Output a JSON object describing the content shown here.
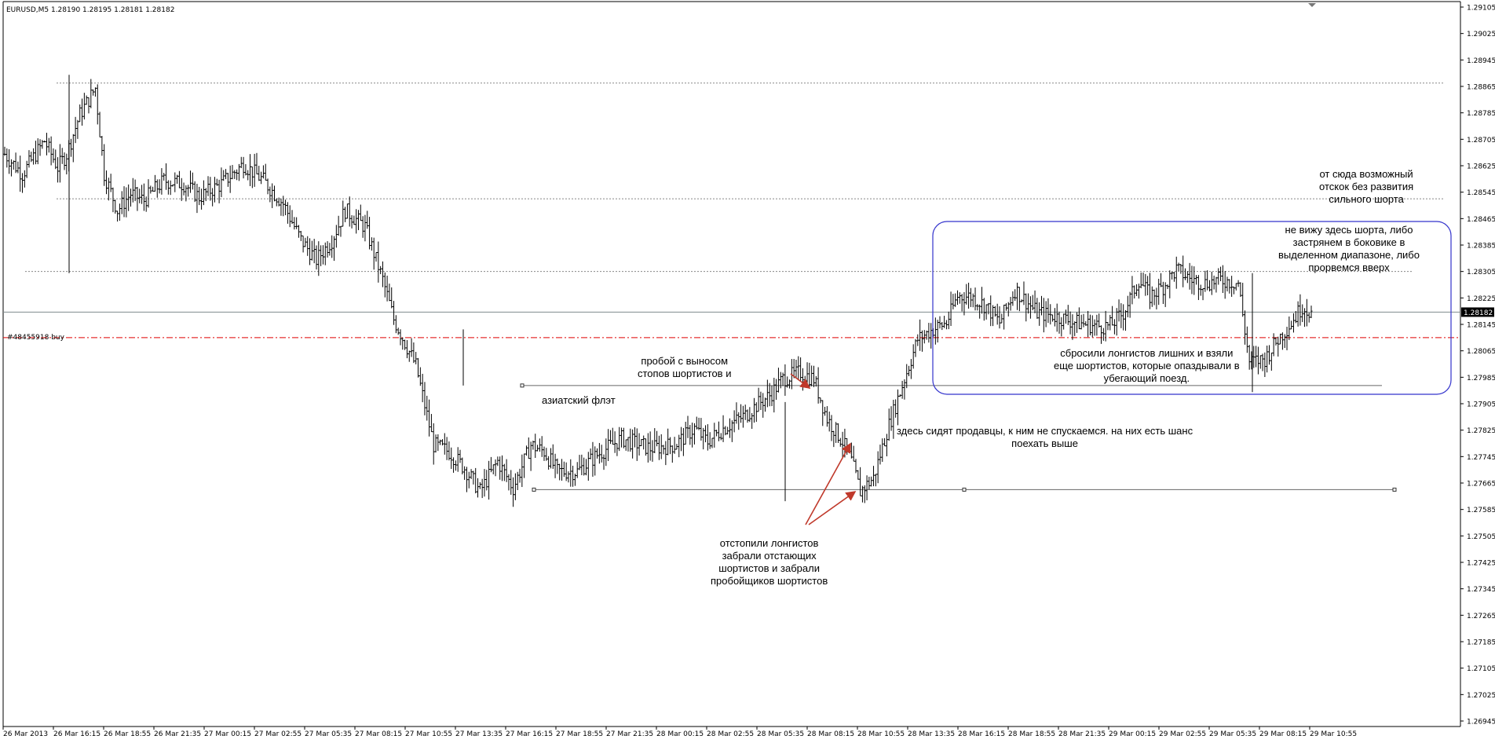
{
  "chart_data": {
    "type": "candlestick",
    "title": "EURUSD,M5  1.28190 1.28195 1.28181 1.28182",
    "symbol": "EURUSD",
    "timeframe": "M5",
    "last_bar": {
      "open": 1.2819,
      "high": 1.28195,
      "low": 1.28181,
      "close": 1.28182
    },
    "current_price_label": "1.28182",
    "ylim": [
      1.26945,
      1.29105
    ],
    "y_ticks": [
      "1.29105",
      "1.29025",
      "1.28945",
      "1.28865",
      "1.28785",
      "1.28705",
      "1.28625",
      "1.28545",
      "1.28465",
      "1.28385",
      "1.28305",
      "1.28225",
      "1.28145",
      "1.28065",
      "1.27985",
      "1.27905",
      "1.27825",
      "1.27745",
      "1.27665",
      "1.27585",
      "1.27505",
      "1.27425",
      "1.27345",
      "1.27265",
      "1.27185",
      "1.27105",
      "1.27025",
      "1.26945"
    ],
    "x_ticks": [
      "26 Mar 2013",
      "26 Mar 16:15",
      "26 Mar 18:55",
      "26 Mar 21:35",
      "27 Mar 00:15",
      "27 Mar 02:55",
      "27 Mar 05:35",
      "27 Mar 08:15",
      "27 Mar 10:55",
      "27 Mar 13:35",
      "27 Mar 16:15",
      "27 Mar 18:55",
      "27 Mar 21:35",
      "28 Mar 00:15",
      "28 Mar 02:55",
      "28 Mar 05:35",
      "28 Mar 08:15",
      "28 Mar 10:55",
      "28 Mar 13:35",
      "28 Mar 16:15",
      "28 Mar 18:55",
      "28 Mar 21:35",
      "29 Mar 00:15",
      "29 Mar 02:55",
      "29 Mar 05:35",
      "29 Mar 08:15",
      "29 Mar 10:55"
    ],
    "price_path": [
      [
        0,
        1.2866
      ],
      [
        8,
        1.286
      ],
      [
        18,
        1.287
      ],
      [
        24,
        1.2862
      ],
      [
        28,
        1.2866
      ],
      [
        34,
        1.2878
      ],
      [
        41,
        1.2886
      ],
      [
        45,
        1.286
      ],
      [
        51,
        1.2849
      ],
      [
        57,
        1.2854
      ],
      [
        63,
        1.2852
      ],
      [
        72,
        1.2858
      ],
      [
        81,
        1.2857
      ],
      [
        88,
        1.2853
      ],
      [
        98,
        1.2857
      ],
      [
        108,
        1.2863
      ],
      [
        117,
        1.2858
      ],
      [
        126,
        1.2851
      ],
      [
        134,
        1.284
      ],
      [
        141,
        1.2834
      ],
      [
        148,
        1.284
      ],
      [
        154,
        1.2849
      ],
      [
        163,
        1.2844
      ],
      [
        171,
        1.2828
      ],
      [
        176,
        1.2816
      ],
      [
        186,
        1.2802
      ],
      [
        194,
        1.2778
      ],
      [
        201,
        1.2776
      ],
      [
        208,
        1.2771
      ],
      [
        215,
        1.2764
      ],
      [
        223,
        1.2773
      ],
      [
        230,
        1.2765
      ],
      [
        238,
        1.2778
      ],
      [
        244,
        1.2776
      ],
      [
        250,
        1.277
      ],
      [
        259,
        1.277
      ],
      [
        268,
        1.2775
      ],
      [
        279,
        1.278
      ],
      [
        292,
        1.2777
      ],
      [
        303,
        1.2778
      ],
      [
        312,
        1.2783
      ],
      [
        318,
        1.2779
      ],
      [
        325,
        1.2783
      ],
      [
        335,
        1.2787
      ],
      [
        340,
        1.279
      ],
      [
        346,
        1.2793
      ],
      [
        352,
        1.2798
      ],
      [
        360,
        1.28
      ],
      [
        366,
        1.2798
      ],
      [
        372,
        1.2786
      ],
      [
        379,
        1.2779
      ],
      [
        383,
        1.2773
      ],
      [
        387,
        1.2764
      ],
      [
        393,
        1.2768
      ],
      [
        399,
        1.2782
      ],
      [
        407,
        1.2798
      ],
      [
        413,
        1.281
      ],
      [
        420,
        1.2813
      ],
      [
        426,
        1.2815
      ],
      [
        431,
        1.2823
      ],
      [
        437,
        1.2823
      ],
      [
        444,
        1.282
      ],
      [
        450,
        1.2815
      ],
      [
        457,
        1.2825
      ],
      [
        467,
        1.2818
      ],
      [
        475,
        1.2817
      ],
      [
        485,
        1.2815
      ],
      [
        494,
        1.2814
      ],
      [
        500,
        1.2814
      ],
      [
        506,
        1.2818
      ],
      [
        513,
        1.2828
      ],
      [
        518,
        1.2823
      ],
      [
        524,
        1.2826
      ],
      [
        530,
        1.2831
      ],
      [
        537,
        1.2828
      ],
      [
        543,
        1.2827
      ],
      [
        550,
        1.2828
      ],
      [
        558,
        1.2827
      ],
      [
        563,
        1.2803
      ],
      [
        570,
        1.2804
      ],
      [
        576,
        1.281
      ],
      [
        582,
        1.2815
      ],
      [
        587,
        1.282
      ],
      [
        591,
        1.2818
      ]
    ],
    "horizontal_levels": [
      1.28875,
      1.28525,
      1.28305,
      1.28182,
      1.28105,
      1.2796,
      1.27645
    ],
    "order_line": {
      "label": "#48455918 buy",
      "price": 1.28105,
      "color": "#e00000"
    },
    "colors": {
      "bars": "#000000",
      "grid_level": "#808080",
      "box": "#3333cc",
      "arrow": "#c0392b",
      "price_tag_bg": "#000000"
    },
    "annotations": {
      "asian_flat": "азиатский флэт",
      "breakout": "пробой с выносом\nстопов шортистов и",
      "stopped_out": "отстопили лонгистов\nзабрали отстающих\nшортистов и забрали\nпробойщиков шортистов",
      "sellers": "здесь сидят продавцы, к ним не спускаемся. на них есть шанс\nпоехать выше",
      "reset_longs": "сбросили лонгистов лишних и взяли\nеще шортистов, которые опаздывали в\nубегающий поезд.",
      "no_short": "не вижу здесь шорта, либо\nзастрянем в боковике в\nвыделенном диапазоне, либо\nпрорвемся вверх",
      "bounce": "от сюда возможный\nотскок без развития\nсильного шорта"
    }
  }
}
